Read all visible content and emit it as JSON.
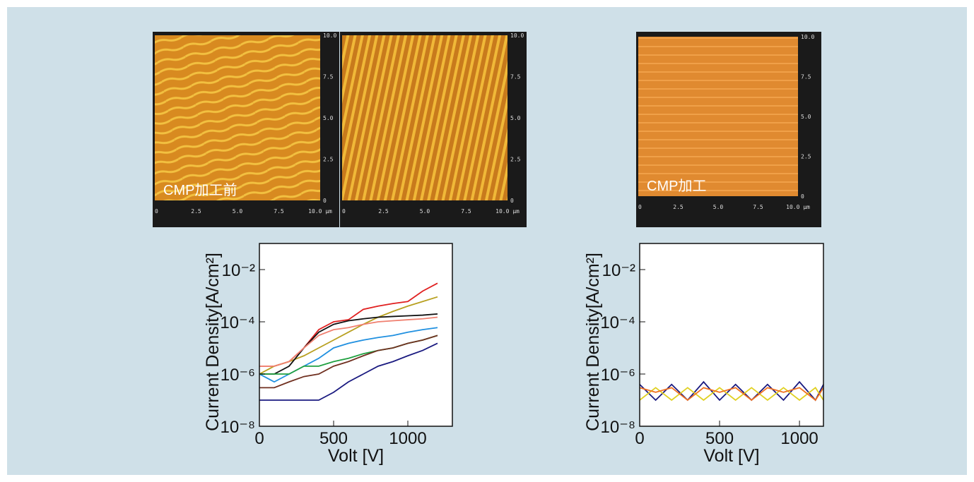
{
  "afm_images": [
    {
      "label": "CMP加工前",
      "x_ticks": [
        "0",
        "2.5",
        "5.0",
        "7.5",
        "10.0 µm"
      ],
      "y_ticks": [
        "0",
        "2.5",
        "5.0",
        "7.5",
        "10.0"
      ]
    },
    {
      "x_ticks": [
        "0",
        "2.5",
        "5.0",
        "7.5",
        "10.0 µm"
      ],
      "y_ticks": [
        "0",
        "2.5",
        "5.0",
        "7.5",
        "10.0"
      ]
    },
    {
      "label": "CMP加工",
      "x_ticks": [
        "0",
        "2.5",
        "5.0",
        "7.5",
        "10.0 µm"
      ],
      "y_ticks": [
        "0",
        "2.5",
        "5.0",
        "7.5",
        "10.0"
      ]
    }
  ],
  "chart_data": [
    {
      "type": "line",
      "x_label": "Volt [V]",
      "y_label": "Current Density[A/cm²]",
      "log_y": true,
      "xlim": [
        0,
        1300
      ],
      "ylim": [
        1e-08,
        0.1
      ],
      "xticks": [
        0,
        500,
        1000
      ],
      "yticks": [
        {
          "value": 1e-08,
          "label": "10⁻⁸"
        },
        {
          "value": 1e-06,
          "label": "10⁻⁶"
        },
        {
          "value": 0.0001,
          "label": "10⁻⁴"
        },
        {
          "value": 0.01,
          "label": "10⁻²"
        }
      ],
      "x": [
        0,
        100,
        200,
        300,
        400,
        500,
        600,
        700,
        800,
        900,
        1000,
        1100,
        1200
      ],
      "series": [
        {
          "color": "#e02020",
          "values": [
            2e-06,
            2e-06,
            3e-06,
            1e-05,
            5e-05,
            0.0001,
            0.00012,
            0.0003,
            0.0004,
            0.0005,
            0.0006,
            0.0015,
            0.003
          ]
        },
        {
          "color": "#b8a020",
          "values": [
            1e-06,
            2e-06,
            3e-06,
            5e-06,
            1e-05,
            2e-05,
            4e-05,
            8e-05,
            0.00015,
            0.00025,
            0.0004,
            0.0006,
            0.0009
          ]
        },
        {
          "color": "#111111",
          "values": [
            1e-06,
            1e-06,
            2e-06,
            1e-05,
            4e-05,
            8e-05,
            0.00011,
            0.00013,
            0.00015,
            0.00016,
            0.00017,
            0.00018,
            0.0002
          ]
        },
        {
          "color": "#f08070",
          "values": [
            2e-06,
            2e-06,
            3e-06,
            1e-05,
            3e-05,
            5e-05,
            6e-05,
            8e-05,
            0.0001,
            0.00011,
            0.00012,
            0.00013,
            0.00015
          ]
        },
        {
          "color": "#2090e0",
          "values": [
            1e-06,
            5e-07,
            1e-06,
            2e-06,
            4e-06,
            1e-05,
            1.5e-05,
            2e-05,
            2.5e-05,
            3e-05,
            4e-05,
            5e-05,
            6e-05
          ]
        },
        {
          "color": "#20a040",
          "values": [
            1e-06,
            1e-06,
            1e-06,
            2e-06,
            2e-06,
            3e-06,
            4e-06,
            6e-06,
            8e-06,
            1e-05,
            1.5e-05,
            2e-05,
            3e-05
          ]
        },
        {
          "color": "#703020",
          "values": [
            3e-07,
            3e-07,
            5e-07,
            8e-07,
            1e-06,
            2e-06,
            3e-06,
            5e-06,
            8e-06,
            1e-05,
            1.5e-05,
            2e-05,
            3e-05
          ]
        },
        {
          "color": "#1a1a80",
          "values": [
            1e-07,
            1e-07,
            1e-07,
            1e-07,
            1e-07,
            2e-07,
            5e-07,
            1e-06,
            2e-06,
            3e-06,
            5e-06,
            8e-06,
            1.5e-05
          ]
        }
      ]
    },
    {
      "type": "line",
      "x_label": "Volt [V]",
      "y_label": "Current Density[A/cm²]",
      "log_y": true,
      "xlim": [
        0,
        1150
      ],
      "ylim": [
        1e-08,
        0.1
      ],
      "xticks": [
        0,
        500,
        1000
      ],
      "yticks": [
        {
          "value": 1e-08,
          "label": "10⁻⁸"
        },
        {
          "value": 1e-06,
          "label": "10⁻⁶"
        },
        {
          "value": 0.0001,
          "label": "10⁻⁴"
        },
        {
          "value": 0.01,
          "label": "10⁻²"
        }
      ],
      "x": [
        0,
        100,
        200,
        300,
        400,
        500,
        600,
        700,
        800,
        900,
        1000,
        1100,
        1150
      ],
      "series": [
        {
          "color": "#1a1a80",
          "values": [
            4e-07,
            1e-07,
            4e-07,
            1e-07,
            5e-07,
            1e-07,
            4e-07,
            1e-07,
            4e-07,
            1e-07,
            5e-07,
            1e-07,
            4e-07
          ]
        },
        {
          "color": "#e0d020",
          "values": [
            1e-07,
            3e-07,
            1e-07,
            3e-07,
            1e-07,
            3e-07,
            1e-07,
            3e-07,
            1e-07,
            3e-07,
            1e-07,
            3e-07,
            1e-07
          ]
        },
        {
          "color": "#f07020",
          "values": [
            3e-07,
            2e-07,
            3e-07,
            1e-07,
            3e-07,
            2e-07,
            3e-07,
            1e-07,
            3e-07,
            2e-07,
            3e-07,
            1e-07,
            3e-07
          ]
        }
      ]
    }
  ]
}
